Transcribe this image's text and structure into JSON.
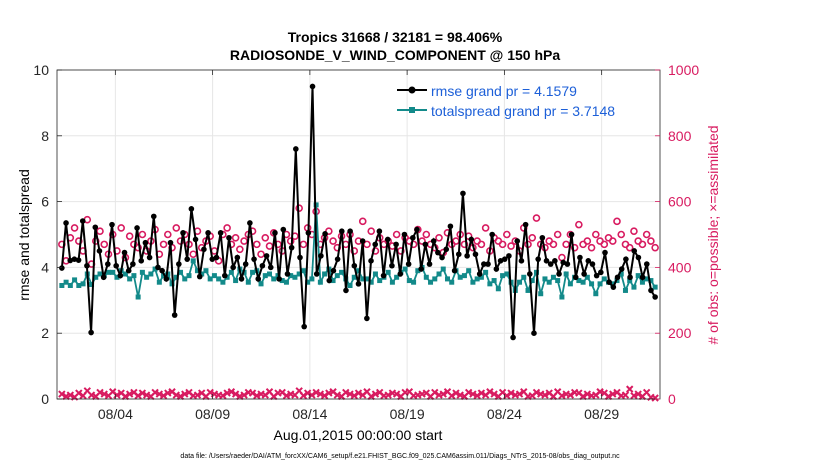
{
  "chart_data": {
    "type": "line",
    "title_line1": "Tropics 31668 / 32181 = 98.406%",
    "title_line2": "RADIOSONDE_V_WIND_COMPONENT @ 150 hPa",
    "xlabel": "Aug.01,2015 00:00:00 start",
    "ylabel_left": "rmse and totalspread",
    "ylabel_right": "# of obs: o=possible; ×=assimilated",
    "footer": "data file: /Users/raeder/DAI/ATM_forcXX/CAM6_setup/f.e21.FHIST_BGC.f09_025.CAM6assim.011/Diags_NTrS_2015-08/obs_diag_output.nc",
    "xlim": [
      1.0,
      32.0
    ],
    "x_ticks": [
      4,
      9,
      14,
      19,
      24,
      29
    ],
    "x_tick_labels": [
      "08/04",
      "08/09",
      "08/14",
      "08/19",
      "08/24",
      "08/29"
    ],
    "ylim_left": [
      0,
      10
    ],
    "y_ticks_left": [
      0,
      2,
      4,
      6,
      8,
      10
    ],
    "y_tick_labels_left": [
      "0",
      "2",
      "4",
      "6",
      "8",
      "10"
    ],
    "ylim_right": [
      0,
      1000
    ],
    "y_ticks_right": [
      0,
      200,
      400,
      600,
      800,
      1000
    ],
    "y_tick_labels_right": [
      "0",
      "200",
      "400",
      "600",
      "800",
      "1000"
    ],
    "grid": true,
    "legend_position": "top-right",
    "colors": {
      "rmse": "#000000",
      "spread": "#138a8a",
      "obs": "#d81b60",
      "legend_text": "#1c5fd8",
      "grid": "#e6e6e6",
      "axis": "#262626"
    },
    "series": [
      {
        "name": "rmse grand pr = 4.1579",
        "axis": "left",
        "values": [
          3.98,
          5.35,
          4.21,
          4.25,
          4.22,
          5.41,
          4.05,
          2.02,
          5.22,
          4.5,
          3.7,
          4.1,
          5.3,
          4.05,
          3.75,
          4.45,
          3.9,
          4.1,
          5.2,
          4.2,
          4.75,
          4.3,
          5.55,
          4.0,
          3.9,
          3.65,
          4.75,
          2.55,
          4.1,
          5.05,
          4.25,
          5.78,
          4.85,
          3.72,
          4.55,
          5.05,
          4.25,
          4.3,
          5.05,
          3.75,
          4.9,
          4.0,
          4.3,
          3.65,
          4.1,
          5.35,
          4.25,
          3.65,
          4.05,
          4.35,
          4.0,
          5.05,
          3.65,
          5.15,
          3.8,
          4.6,
          7.6,
          4.3,
          2.2,
          5.05,
          9.5,
          3.8,
          4.35,
          5.02,
          3.6,
          3.9,
          4.25,
          5.1,
          3.3,
          5.1,
          4.05,
          3.5,
          4.8,
          2.45,
          4.2,
          4.7,
          5.1,
          3.75,
          4.85,
          4.05,
          4.7,
          3.8,
          5.0,
          4.1,
          4.9,
          5.15,
          3.95,
          4.7,
          4.1,
          4.8,
          4.45,
          4.3,
          4.55,
          5.25,
          3.9,
          4.4,
          6.25,
          4.35,
          4.85,
          4.4,
          3.8,
          4.1,
          4.1,
          5.0,
          3.95,
          4.2,
          4.25,
          4.35,
          1.87,
          4.8,
          4.2,
          5.3,
          3.8,
          2.0,
          4.25,
          4.9,
          4.2,
          4.1,
          4.2,
          3.8,
          4.15,
          4.1,
          5.0,
          3.7,
          4.3,
          3.8,
          4.2,
          4.1,
          3.75,
          3.85,
          4.45,
          3.55,
          3.4,
          3.7,
          3.95,
          4.25,
          3.7,
          4.5,
          4.3,
          3.7,
          4.1,
          3.3,
          3.1
        ]
      },
      {
        "name": "totalspread grand pr = 3.7148",
        "axis": "left",
        "values": [
          3.45,
          3.55,
          3.45,
          3.62,
          3.45,
          3.5,
          3.8,
          3.48,
          3.7,
          3.8,
          3.75,
          3.85,
          3.85,
          3.7,
          3.9,
          3.8,
          3.65,
          3.75,
          3.1,
          3.85,
          3.7,
          3.8,
          3.95,
          3.55,
          3.75,
          3.8,
          3.5,
          3.7,
          3.85,
          3.65,
          3.75,
          4.2,
          3.9,
          3.8,
          3.9,
          3.65,
          3.75,
          3.65,
          3.55,
          3.7,
          3.85,
          3.6,
          3.95,
          3.85,
          3.55,
          3.85,
          3.9,
          3.5,
          3.75,
          3.8,
          3.65,
          3.75,
          3.6,
          3.55,
          3.75,
          3.7,
          3.8,
          3.9,
          3.55,
          3.65,
          5.9,
          3.55,
          3.8,
          3.95,
          3.6,
          3.75,
          3.85,
          3.65,
          3.45,
          3.7,
          3.9,
          3.65,
          3.65,
          3.55,
          3.8,
          3.6,
          3.7,
          3.85,
          3.55,
          3.7,
          3.85,
          3.95,
          3.6,
          3.55,
          3.9,
          4.0,
          3.7,
          3.55,
          3.65,
          3.8,
          3.95,
          3.65,
          3.55,
          3.9,
          3.7,
          3.75,
          3.9,
          3.55,
          3.65,
          3.7,
          3.85,
          3.5,
          3.6,
          3.35,
          3.75,
          3.8,
          3.55,
          3.3,
          3.55,
          3.7,
          3.3,
          3.6,
          3.85,
          3.2,
          3.65,
          3.55,
          3.7,
          3.6,
          3.1,
          3.8,
          3.5,
          3.7,
          3.6,
          3.55,
          3.7,
          3.5,
          3.2,
          3.5,
          3.65,
          3.55,
          3.5,
          3.6,
          3.8,
          3.3,
          3.6,
          3.4,
          3.75,
          3.55,
          3.65,
          3.6,
          3.4
        ]
      },
      {
        "name": "obs possible",
        "axis": "right",
        "values": [
          470,
          420,
          490,
          520,
          480,
          450,
          545,
          410,
          480,
          510,
          470,
          440,
          500,
          450,
          520,
          430,
          495,
          470,
          460,
          500,
          450,
          480,
          515,
          440,
          470,
          500,
          460,
          520,
          480,
          500,
          470,
          440,
          510,
          460,
          480,
          495,
          450,
          420,
          500,
          520,
          470,
          490,
          455,
          480,
          500,
          510,
          470,
          440,
          490,
          465,
          505,
          470,
          450,
          500,
          480,
          495,
          580,
          470,
          520,
          500,
          570,
          470,
          490,
          510,
          480,
          460,
          495,
          470,
          500,
          450,
          480,
          540,
          470,
          510,
          450,
          490,
          470,
          480,
          465,
          500,
          450,
          490,
          480,
          470,
          515,
          480,
          500,
          470,
          460,
          490,
          445,
          505,
          470,
          480,
          500,
          470,
          495,
          460,
          480,
          470,
          520,
          450,
          490,
          480,
          470,
          500,
          465,
          480,
          450,
          520,
          470,
          490,
          550,
          470,
          460,
          480,
          470,
          500,
          430,
          470,
          500,
          460,
          530,
          470,
          480,
          460,
          500,
          480,
          470,
          490,
          480,
          540,
          500,
          470,
          460,
          510,
          480,
          470,
          500,
          480,
          460
        ]
      },
      {
        "name": "obs assimilated",
        "axis": "right",
        "values": [
          15,
          8,
          12,
          6,
          18,
          10,
          25,
          12,
          8,
          20,
          15,
          10,
          22,
          12,
          18,
          8,
          15,
          20,
          10,
          18,
          12,
          8,
          20,
          15,
          10,
          18,
          22,
          12,
          8,
          15,
          20,
          10,
          12,
          18,
          8,
          20,
          15,
          12,
          10,
          18,
          22,
          15,
          8,
          12,
          20,
          18,
          10,
          15,
          12,
          22,
          8,
          18,
          20,
          10,
          15,
          12,
          25,
          10,
          18,
          12,
          20,
          15,
          10,
          18,
          22,
          12,
          8,
          20,
          15,
          10,
          18,
          12,
          22,
          8,
          15,
          20,
          10,
          12,
          18,
          15,
          8,
          20,
          22,
          10,
          12,
          15,
          18,
          8,
          20,
          12,
          15,
          22,
          10,
          18,
          12,
          8,
          20,
          15,
          10,
          18,
          12,
          22,
          15,
          8,
          20,
          10,
          18,
          12,
          15,
          22,
          8,
          10,
          20,
          15,
          12,
          18,
          8,
          22,
          10,
          15,
          12,
          20,
          18,
          8,
          15,
          10,
          12,
          22,
          18,
          8,
          15,
          20,
          10,
          12,
          30,
          10,
          15,
          8,
          20,
          5,
          3
        ]
      }
    ]
  }
}
